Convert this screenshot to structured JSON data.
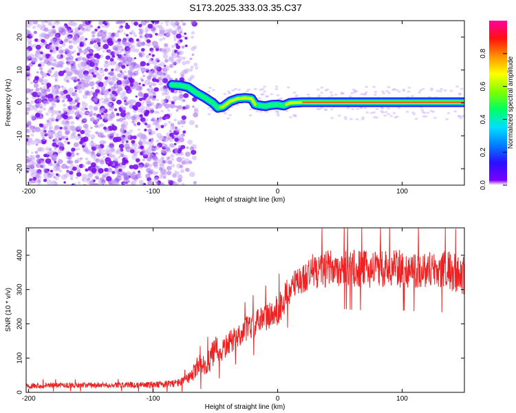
{
  "title": "S173.2025.333.03.35.C37",
  "colors": {
    "frame": "#000000",
    "snr_line": "#ee2222",
    "colorbar": [
      "#7a00ff",
      "#2a10ff",
      "#0080ff",
      "#00e0ff",
      "#00ff60",
      "#80ff00",
      "#ffff00",
      "#ff9000",
      "#ff1010",
      "#ff00a0"
    ]
  },
  "chart_data": [
    {
      "type": "heatmap",
      "name": "spectrogram",
      "xlabel": "Height of straight line (km)",
      "ylabel": "Frequency (Hz)",
      "xlim": [
        -202,
        150
      ],
      "ylim": [
        -25,
        25
      ],
      "xticks": [
        -200,
        -100,
        0,
        100
      ],
      "xtick_labels": [
        "-200",
        "-100",
        "0",
        "100"
      ],
      "yticks": [
        -20,
        -10,
        0,
        10,
        20
      ],
      "ytick_labels": [
        "-20",
        "-10",
        "0",
        "10",
        "20"
      ],
      "colorbar": {
        "label": "Normalized spectral amplitude",
        "range": [
          0,
          1
        ],
        "ticks": [
          0.0,
          0.2,
          0.4,
          0.6,
          0.8
        ],
        "tick_labels": [
          "0.0",
          "0.2",
          "0.4",
          "0.6",
          "0.8"
        ]
      },
      "noise_region": {
        "x_range": [
          -202,
          -75
        ],
        "freq_range": [
          -25,
          25
        ],
        "amplitude_range": [
          0.0,
          0.15
        ]
      },
      "ridge": {
        "description": "Dominant frequency track vs height",
        "x": [
          -85,
          -78,
          -72,
          -65,
          -58,
          -52,
          -48,
          -44,
          -38,
          -32,
          -26,
          -21,
          -18,
          -14,
          -10,
          -5,
          0,
          5,
          10,
          20,
          40,
          60,
          80,
          100,
          120,
          150
        ],
        "freq": [
          5.5,
          5.3,
          4.8,
          3.0,
          1.5,
          0.0,
          -1.5,
          -1.2,
          0.5,
          1.3,
          1.5,
          1.3,
          -0.5,
          -0.8,
          -1.0,
          -0.6,
          -0.5,
          -0.8,
          0.0,
          0.2,
          0.2,
          0.2,
          0.2,
          0.2,
          0.2,
          0.2
        ],
        "amplitude": [
          0.45,
          0.5,
          0.55,
          0.5,
          0.45,
          0.5,
          0.55,
          0.6,
          0.65,
          0.7,
          0.75,
          0.7,
          0.55,
          0.5,
          0.45,
          0.5,
          0.45,
          0.5,
          0.8,
          0.85,
          0.85,
          0.85,
          0.85,
          0.85,
          0.85,
          0.85
        ]
      }
    },
    {
      "type": "line",
      "name": "snr",
      "xlabel": "Height of straight line (km)",
      "ylabel": "SNR (10 * v/v)",
      "xlim": [
        -202,
        150
      ],
      "ylim": [
        0,
        480
      ],
      "xticks": [
        -200,
        -100,
        0,
        100
      ],
      "xtick_labels": [
        "-200",
        "-100",
        "0",
        "100"
      ],
      "yticks": [
        0,
        100,
        200,
        300,
        400
      ],
      "ytick_labels": [
        "0",
        "100",
        "200",
        "300",
        "400"
      ],
      "series": [
        {
          "name": "SNR",
          "x": [
            -202,
            -190,
            -170,
            -150,
            -130,
            -110,
            -90,
            -80,
            -75,
            -70,
            -65,
            -62,
            -58,
            -55,
            -50,
            -45,
            -40,
            -35,
            -30,
            -25,
            -20,
            -15,
            -10,
            -5,
            0,
            5,
            10,
            15,
            20,
            25,
            30,
            40,
            50,
            60,
            70,
            80,
            90,
            100,
            110,
            120,
            130,
            140,
            145,
            150
          ],
          "values": [
            20,
            20,
            21,
            20,
            21,
            22,
            24,
            28,
            33,
            45,
            70,
            100,
            60,
            90,
            125,
            120,
            140,
            155,
            170,
            185,
            195,
            205,
            218,
            228,
            240,
            270,
            300,
            318,
            330,
            345,
            355,
            360,
            365,
            362,
            360,
            360,
            362,
            360,
            358,
            360,
            358,
            352,
            340,
            340
          ],
          "noise_amplitude": [
            8,
            8,
            8,
            8,
            8,
            9,
            10,
            12,
            14,
            20,
            30,
            40,
            35,
            40,
            40,
            35,
            35,
            35,
            35,
            38,
            40,
            40,
            42,
            45,
            45,
            45,
            45,
            45,
            45,
            50,
            55,
            55,
            55,
            55,
            55,
            55,
            55,
            55,
            55,
            55,
            55,
            60,
            60,
            60
          ]
        }
      ]
    }
  ]
}
